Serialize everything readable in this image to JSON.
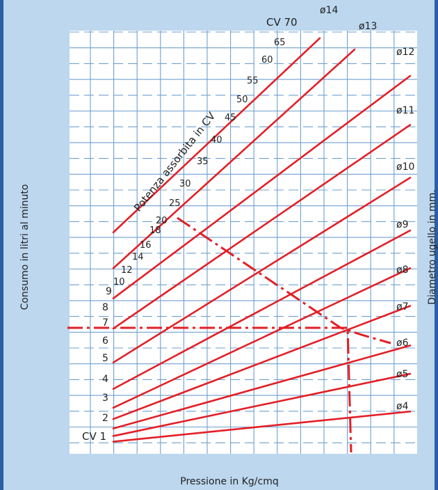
{
  "chart_data": {
    "type": "line",
    "title": "",
    "xlabel": "Pressione in Kg/cmq",
    "ylabel": "Consumo in litri al minuto",
    "y2label": "Diametro ugello in mm.",
    "diagonal_label": "Potenza assorbita in CV",
    "y_ticks": [
      "CV 1",
      "2",
      "3",
      "4",
      "5",
      "6",
      "7",
      "8",
      "9",
      "10",
      "12",
      "14",
      "16",
      "18",
      "20",
      "25",
      "30",
      "35",
      "40",
      "45",
      "50",
      "55",
      "60",
      "65",
      "CV 70"
    ],
    "series": [
      {
        "name": "ø4",
        "start": 0.1,
        "end": 0.9
      },
      {
        "name": "ø5",
        "start": 0.25,
        "end": 1.9
      },
      {
        "name": "ø6",
        "start": 0.45,
        "end": 2.65
      },
      {
        "name": "ø7",
        "start": 0.7,
        "end": 3.7
      },
      {
        "name": "ø8",
        "start": 1.0,
        "end": 4.7
      },
      {
        "name": "ø9",
        "start": 1.5,
        "end": 5.7
      },
      {
        "name": "ø10",
        "start": 2.2,
        "end": 7.1
      },
      {
        "name": "ø11",
        "start": 3.1,
        "end": 8.5
      },
      {
        "name": "ø12",
        "start": 3.9,
        "end": 9.8
      },
      {
        "name": "ø13",
        "start": 4.7,
        "end": 10.5
      },
      {
        "name": "ø14",
        "start": 5.65,
        "end": 10.8
      }
    ],
    "grid": true,
    "example_path": "dashed red construction line"
  }
}
